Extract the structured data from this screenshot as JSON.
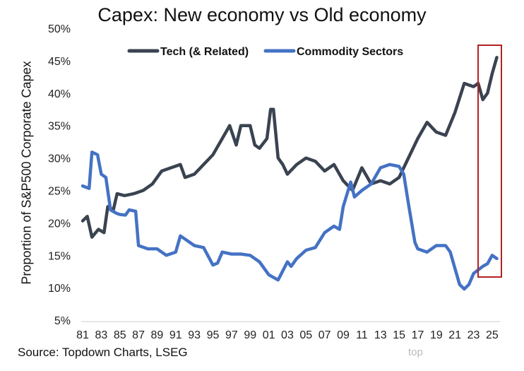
{
  "chart_data": {
    "type": "line",
    "title": "Capex: New economy vs Old economy",
    "xlabel": "",
    "ylabel": "Proportion of S&P500 Corporate Capex",
    "ylim": [
      5,
      50
    ],
    "xlim": [
      1981,
      2025.5
    ],
    "y_ticks": [
      "5%",
      "10%",
      "15%",
      "20%",
      "25%",
      "30%",
      "35%",
      "40%",
      "45%",
      "50%"
    ],
    "x_ticks": [
      "81",
      "83",
      "85",
      "87",
      "89",
      "91",
      "93",
      "95",
      "97",
      "99",
      "01",
      "03",
      "05",
      "07",
      "09",
      "11",
      "13",
      "15",
      "17",
      "19",
      "21",
      "23",
      "25"
    ],
    "grid": false,
    "legend_position": "top",
    "highlight_box": {
      "x_range": [
        2023.5,
        2026
      ],
      "color": "#b22222"
    },
    "series": [
      {
        "name": "Tech (& Related)",
        "color": "#3a4350",
        "x": [
          1981,
          1981.5,
          1982,
          1982.7,
          1983.3,
          1983.7,
          1984.3,
          1984.7,
          1985.5,
          1986.5,
          1987.5,
          1988.5,
          1989.5,
          1990.5,
          1991.5,
          1992,
          1993,
          1994,
          1995,
          1996,
          1996.8,
          1997.5,
          1998,
          1999,
          1999.5,
          2000,
          2000.8,
          2001.2,
          2001.5,
          2002,
          2002.5,
          2003,
          2004,
          2005,
          2006,
          2007,
          2008,
          2009,
          2010,
          2011,
          2012,
          2013,
          2014,
          2015,
          2016,
          2017,
          2018,
          2019,
          2020,
          2021,
          2022,
          2023,
          2023.5,
          2024,
          2024.5,
          2025,
          2025.5
        ],
        "y": [
          20.3,
          21,
          17.8,
          19,
          18.5,
          22.5,
          22,
          24.5,
          24.2,
          24.5,
          25,
          26,
          28,
          28.5,
          29,
          27,
          27.5,
          29,
          30.5,
          33,
          35,
          32,
          35,
          35,
          32,
          31.5,
          33,
          37.5,
          37.5,
          30,
          29,
          27.5,
          29,
          30,
          29.5,
          28,
          29,
          26.5,
          25,
          28.5,
          26,
          26.5,
          26,
          27,
          30,
          33,
          35.5,
          34,
          33.5,
          37,
          41.5,
          41,
          41.5,
          39,
          40,
          43,
          45.5
        ]
      },
      {
        "name": "Commodity Sectors",
        "color": "#4472c4",
        "x": [
          1981,
          1981.7,
          1982,
          1982.6,
          1983,
          1983.5,
          1984,
          1984.6,
          1985,
          1985.6,
          1986,
          1986.7,
          1987,
          1988,
          1989,
          1990,
          1991,
          1991.5,
          1992,
          1993,
          1994,
          1995,
          1995.5,
          1996,
          1997,
          1998,
          1999,
          2000,
          2001,
          2002,
          2003,
          2003.4,
          2004,
          2005,
          2006,
          2007,
          2008,
          2008.6,
          2009,
          2009.8,
          2010.2,
          2011,
          2012,
          2013,
          2014,
          2015,
          2015.5,
          2016,
          2016.7,
          2017,
          2018,
          2019,
          2020,
          2020.5,
          2021,
          2021.5,
          2022,
          2022.5,
          2023,
          2024,
          2024.5,
          2025,
          2025.5
        ],
        "y": [
          25.7,
          25.3,
          30.9,
          30.5,
          27.5,
          27,
          22,
          21.5,
          21.3,
          21.2,
          22,
          21.8,
          16.5,
          16,
          16,
          15,
          15.5,
          18,
          17.5,
          16.5,
          16.2,
          13.5,
          13.8,
          15.5,
          15.2,
          15.2,
          15,
          14,
          12,
          11.2,
          14,
          13.3,
          14.5,
          15.8,
          16.2,
          18.5,
          19.5,
          19,
          22.5,
          26.3,
          24,
          25,
          26,
          28.5,
          29,
          28.7,
          27.5,
          23,
          17,
          16,
          15.5,
          16.5,
          16.5,
          15.5,
          13,
          10.5,
          9.8,
          10.5,
          12.2,
          13.3,
          13.7,
          15,
          14.5
        ]
      }
    ]
  },
  "footer": {
    "source": "Source: Topdown Charts, LSEG",
    "watermark": "top"
  }
}
